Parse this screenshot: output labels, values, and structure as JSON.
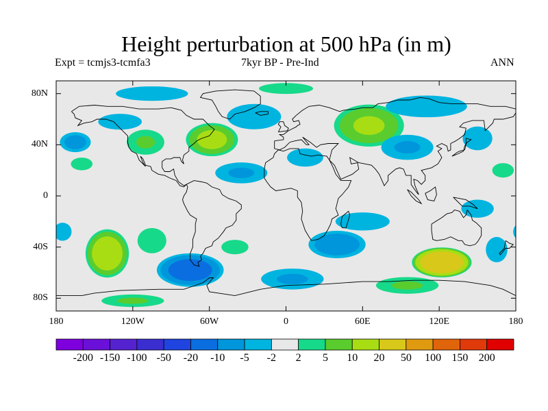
{
  "title": "Height perturbation at 500 hPa (in m)",
  "subtitle_left": "Expt = tcmjs3-tcmfa3",
  "subtitle_center": "7kyr BP - Pre-Ind",
  "subtitle_right": "ANN",
  "map": {
    "projection": "cylindrical-equidistant",
    "lon_range": [
      -180,
      180
    ],
    "lat_range": [
      -90,
      90
    ],
    "land_mask_color": "#e8e8e8",
    "coastline_color": "#000000",
    "y_ticks": [
      {
        "lat": 80,
        "label": "80N"
      },
      {
        "lat": 40,
        "label": "40N"
      },
      {
        "lat": 0,
        "label": "0"
      },
      {
        "lat": -40,
        "label": "40S"
      },
      {
        "lat": -80,
        "label": "80S"
      }
    ],
    "x_ticks": [
      {
        "lon": -180,
        "label": "180"
      },
      {
        "lon": -120,
        "label": "120W"
      },
      {
        "lon": -60,
        "label": "60W"
      },
      {
        "lon": 0,
        "label": "0"
      },
      {
        "lon": 60,
        "label": "60E"
      },
      {
        "lon": 120,
        "label": "120E"
      },
      {
        "lon": 180,
        "label": "180"
      }
    ],
    "anomaly_features": [
      {
        "lon": -165,
        "lat": 42,
        "value": -8,
        "rlon": 14,
        "rlat": 9
      },
      {
        "lon": -160,
        "lat": 25,
        "value": 4,
        "rlon": 12,
        "rlat": 7
      },
      {
        "lon": -105,
        "lat": 80,
        "value": -4,
        "rlon": 40,
        "rlat": 8
      },
      {
        "lon": -130,
        "lat": 58,
        "value": -5,
        "rlon": 22,
        "rlat": 8
      },
      {
        "lon": -110,
        "lat": 42,
        "value": 6,
        "rlon": 18,
        "rlat": 12
      },
      {
        "lon": -58,
        "lat": 44,
        "value": 14,
        "rlon": 22,
        "rlat": 14
      },
      {
        "lon": -35,
        "lat": 18,
        "value": -6,
        "rlon": 25,
        "rlat": 10
      },
      {
        "lon": -25,
        "lat": 62,
        "value": -4,
        "rlon": 30,
        "rlat": 14
      },
      {
        "lon": 0,
        "lat": 84,
        "value": 4,
        "rlon": 30,
        "rlat": 6
      },
      {
        "lon": 65,
        "lat": 55,
        "value": 12,
        "rlon": 30,
        "rlat": 18
      },
      {
        "lon": 15,
        "lat": 30,
        "value": -4,
        "rlon": 20,
        "rlat": 10
      },
      {
        "lon": 110,
        "lat": 70,
        "value": -4,
        "rlon": 45,
        "rlat": 12
      },
      {
        "lon": 95,
        "lat": 38,
        "value": -6,
        "rlon": 25,
        "rlat": 12
      },
      {
        "lon": 150,
        "lat": 45,
        "value": -5,
        "rlon": 15,
        "rlat": 12
      },
      {
        "lon": 170,
        "lat": 20,
        "value": 4,
        "rlon": 12,
        "rlat": 8
      },
      {
        "lon": -140,
        "lat": -45,
        "value": 18,
        "rlon": 18,
        "rlat": 20
      },
      {
        "lon": -105,
        "lat": -35,
        "value": 4,
        "rlon": 16,
        "rlat": 14
      },
      {
        "lon": -175,
        "lat": -28,
        "value": -4,
        "rlon": 10,
        "rlat": 10
      },
      {
        "lon": -75,
        "lat": -58,
        "value": -16,
        "rlon": 28,
        "rlat": 14
      },
      {
        "lon": -40,
        "lat": -40,
        "value": 4,
        "rlon": 15,
        "rlat": 8
      },
      {
        "lon": -120,
        "lat": -82,
        "value": 6,
        "rlon": 30,
        "rlat": 6
      },
      {
        "lon": 40,
        "lat": -38,
        "value": -10,
        "rlon": 25,
        "rlat": 12
      },
      {
        "lon": 60,
        "lat": -20,
        "value": -4,
        "rlon": 30,
        "rlat": 10
      },
      {
        "lon": 5,
        "lat": -65,
        "value": -6,
        "rlon": 30,
        "rlat": 10
      },
      {
        "lon": 122,
        "lat": -52,
        "value": 40,
        "rlon": 24,
        "rlat": 12
      },
      {
        "lon": 95,
        "lat": -70,
        "value": 6,
        "rlon": 30,
        "rlat": 8
      },
      {
        "lon": 165,
        "lat": -42,
        "value": -4,
        "rlon": 12,
        "rlat": 14
      },
      {
        "lon": 150,
        "lat": -10,
        "value": -4,
        "rlon": 18,
        "rlat": 10
      }
    ]
  },
  "colorbar": {
    "levels": [
      -200,
      -150,
      -100,
      -50,
      -20,
      -10,
      -5,
      -2,
      2,
      5,
      10,
      20,
      50,
      100,
      150,
      200
    ],
    "labels": [
      "-200",
      "-150",
      "-100",
      "-50",
      "-20",
      "-10",
      "-5",
      "-2",
      "2",
      "5",
      "10",
      "20",
      "50",
      "100",
      "150",
      "200"
    ],
    "colors": [
      "#7f00df",
      "#6a10d8",
      "#5522d0",
      "#3a2ed0",
      "#1f44e0",
      "#0a6ee0",
      "#0096dc",
      "#00b4e0",
      "#e8e8e8",
      "#17d98a",
      "#5acc2e",
      "#a8dd14",
      "#d8c81a",
      "#e09a10",
      "#e0640a",
      "#e03a0a",
      "#e00000"
    ]
  }
}
